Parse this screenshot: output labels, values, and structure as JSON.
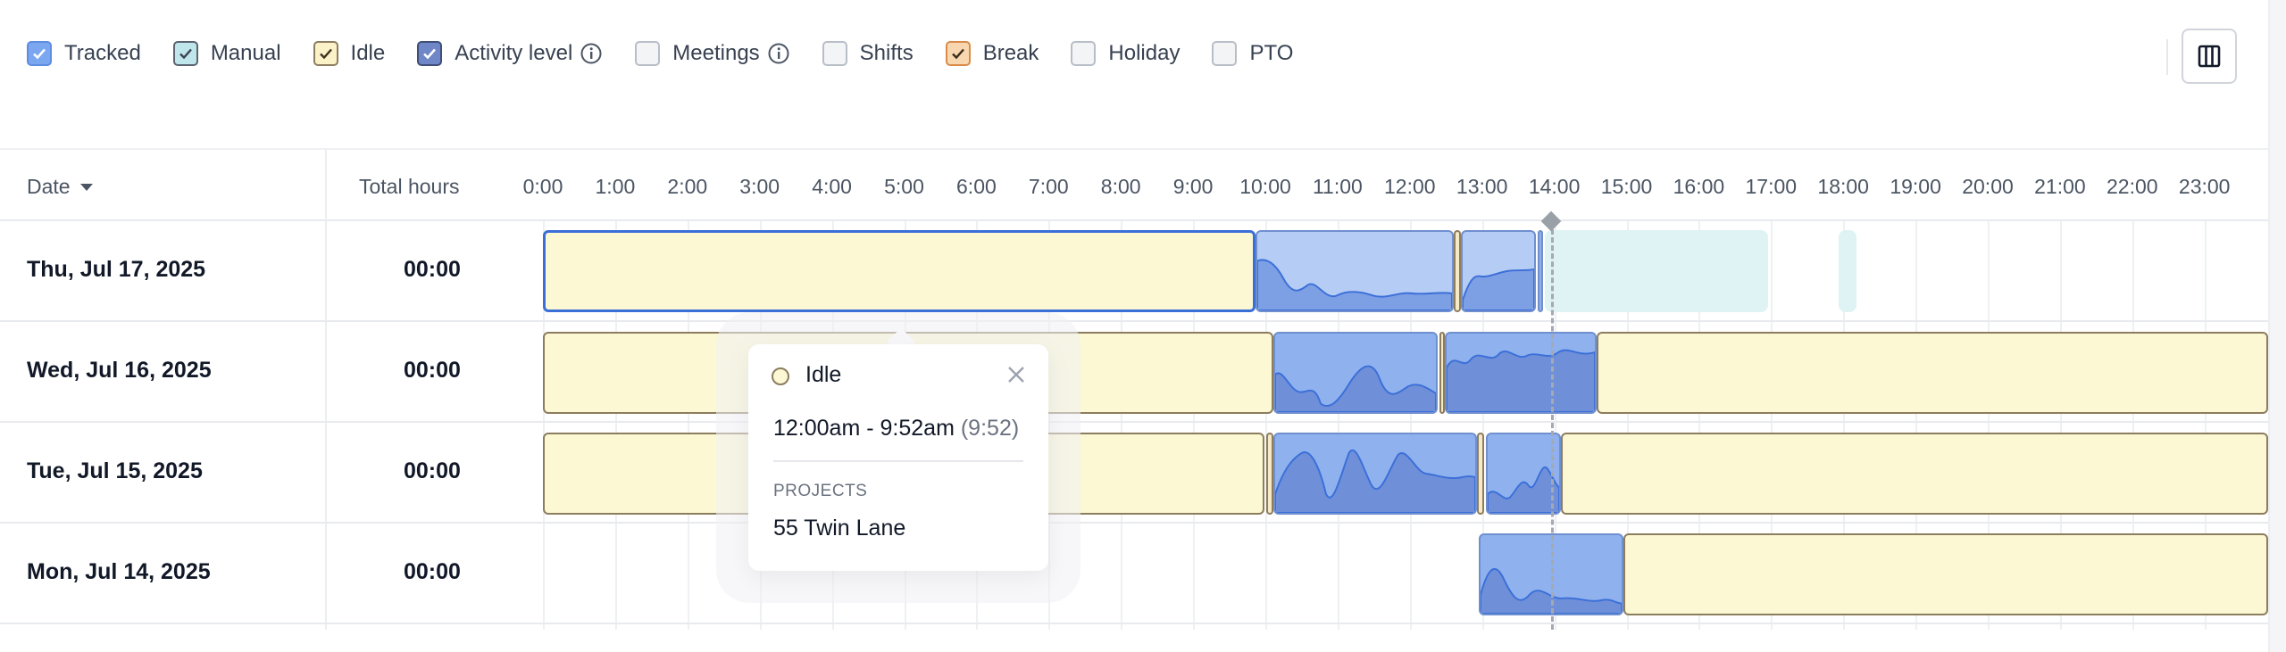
{
  "filters": [
    {
      "label": "Tracked",
      "checked": true,
      "color": "#7aa7f0",
      "info": false
    },
    {
      "label": "Manual",
      "checked": true,
      "color": "#bfe6ea",
      "info": false
    },
    {
      "label": "Idle",
      "checked": true,
      "color": "#fbf2c8",
      "info": false
    },
    {
      "label": "Activity level",
      "checked": true,
      "color": "#6f87c6",
      "info": true
    },
    {
      "label": "Meetings",
      "checked": false,
      "color": "#f3f4f6",
      "info": true
    },
    {
      "label": "Shifts",
      "checked": false,
      "color": "#f3f4f6",
      "info": false
    },
    {
      "label": "Break",
      "checked": true,
      "color": "#f8d7b0",
      "info": false
    },
    {
      "label": "Holiday",
      "checked": false,
      "color": "#f3f4f6",
      "info": false
    },
    {
      "label": "PTO",
      "checked": false,
      "color": "#f3f4f6",
      "info": false
    }
  ],
  "columns_button_icon": "columns-icon",
  "table": {
    "date_header": "Date",
    "total_header": "Total hours",
    "hours": [
      "0:00",
      "1:00",
      "2:00",
      "3:00",
      "4:00",
      "5:00",
      "6:00",
      "7:00",
      "8:00",
      "9:00",
      "10:00",
      "11:00",
      "12:00",
      "13:00",
      "14:00",
      "15:00",
      "16:00",
      "17:00",
      "18:00",
      "19:00",
      "20:00",
      "21:00",
      "22:00",
      "23:00"
    ],
    "rows": [
      {
        "date": "Thu, Jul 17, 2025",
        "total": "00:00"
      },
      {
        "date": "Wed, Jul 16, 2025",
        "total": "00:00"
      },
      {
        "date": "Tue, Jul 15, 2025",
        "total": "00:00"
      },
      {
        "date": "Mon, Jul 14, 2025",
        "total": "00:00"
      }
    ]
  },
  "tooltip": {
    "title": "Idle",
    "time_range": "12:00am - 9:52am",
    "duration": "(9:52)",
    "projects_label": "PROJECTS",
    "project": "55 Twin Lane"
  }
}
